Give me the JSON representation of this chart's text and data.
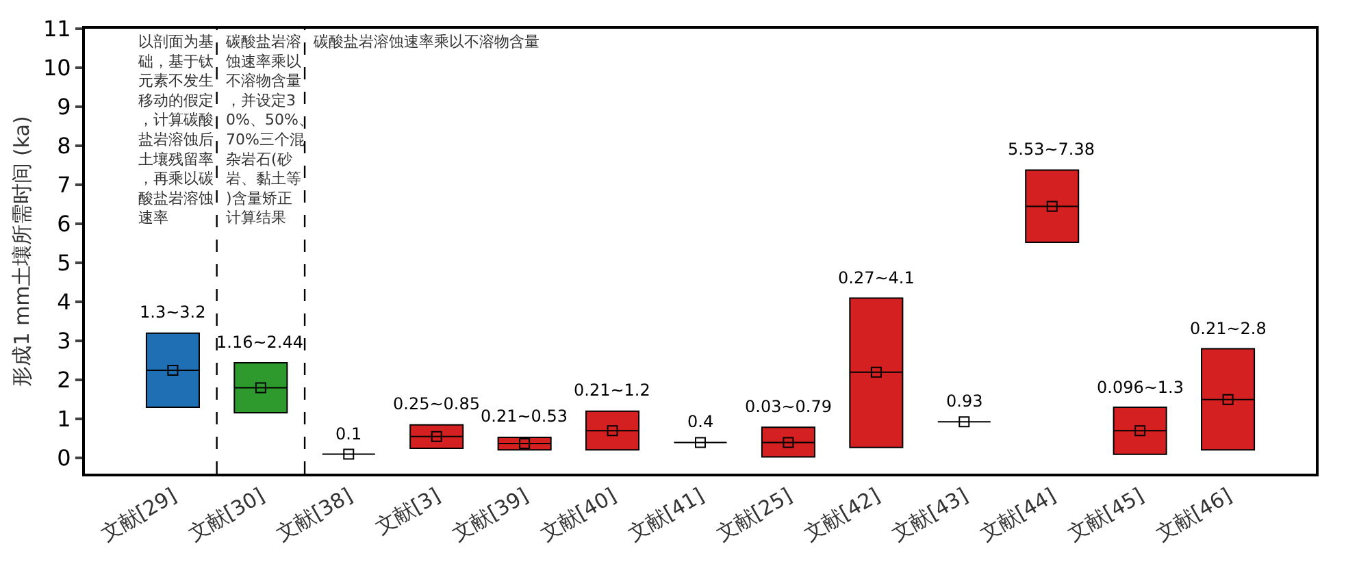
{
  "chart_data": {
    "type": "box",
    "ylabel": "形成1 mm土壤所需时间 (ka)",
    "categories": [
      "文献[29]",
      "文献[30]",
      "文献[38]",
      "文献[3]",
      "文献[39]",
      "文献[40]",
      "文献[41]",
      "文献[25]",
      "文献[42]",
      "文献[43]",
      "文献[44]",
      "文献[45]",
      "文献[46]"
    ],
    "boxes": [
      {
        "low": 1.3,
        "q1": 1.3,
        "median": 2.25,
        "q3": 3.2,
        "high": 3.2,
        "mean": 2.25
      },
      {
        "low": 1.16,
        "q1": 1.16,
        "median": 1.8,
        "q3": 2.44,
        "high": 2.44,
        "mean": 1.8
      },
      {
        "low": 0.1,
        "q1": 0.1,
        "median": 0.1,
        "q3": 0.1,
        "high": 0.1,
        "mean": 0.1
      },
      {
        "low": 0.25,
        "q1": 0.25,
        "median": 0.55,
        "q3": 0.85,
        "high": 0.85,
        "mean": 0.55
      },
      {
        "low": 0.21,
        "q1": 0.21,
        "median": 0.37,
        "q3": 0.53,
        "high": 0.53,
        "mean": 0.37
      },
      {
        "low": 0.21,
        "q1": 0.21,
        "median": 0.7,
        "q3": 1.2,
        "high": 1.2,
        "mean": 0.7
      },
      {
        "low": 0.4,
        "q1": 0.4,
        "median": 0.4,
        "q3": 0.4,
        "high": 0.4,
        "mean": 0.4
      },
      {
        "low": 0.03,
        "q1": 0.03,
        "median": 0.4,
        "q3": 0.79,
        "high": 0.79,
        "mean": 0.4
      },
      {
        "low": 0.27,
        "q1": 0.27,
        "median": 2.2,
        "q3": 4.1,
        "high": 4.1,
        "mean": 2.2
      },
      {
        "low": 0.93,
        "q1": 0.93,
        "median": 0.93,
        "q3": 0.93,
        "high": 0.93,
        "mean": 0.93
      },
      {
        "low": 5.53,
        "q1": 5.53,
        "median": 6.45,
        "q3": 7.38,
        "high": 7.38,
        "mean": 6.45
      },
      {
        "low": 0.096,
        "q1": 0.096,
        "median": 0.7,
        "q3": 1.3,
        "high": 1.3,
        "mean": 0.7
      },
      {
        "low": 0.21,
        "q1": 0.21,
        "median": 1.5,
        "q3": 2.8,
        "high": 2.8,
        "mean": 1.5
      }
    ],
    "colors": [
      "#1f6fb4",
      "#2e9a2e",
      "#000000",
      "#d42020",
      "#d42020",
      "#d42020",
      "#000000",
      "#d42020",
      "#d42020",
      "#000000",
      "#d42020",
      "#d42020",
      "#d42020"
    ],
    "ylim": [
      -0.4,
      11
    ],
    "yticks": [
      0,
      1,
      2,
      3,
      4,
      5,
      6,
      7,
      8,
      9,
      10,
      11
    ],
    "grid": false,
    "marker": "square",
    "annotations": [
      "以剖面为基础，基于钛元素不发生移动的假定，计算碳酸盐岩溶蚀后土壤残留率，再乘以碳酸盐岩溶蚀速率",
      "碳酸盐岩溶蚀速率乘以不溶物含量，并设定30%、50%、70%三个混杂岩石(砂岩、黏土等)含量矫正计算结果",
      "碳酸盐岩溶蚀速率乘以不溶物含量",
      {
        "text": "1.3~3.2",
        "x": "文献[29]",
        "y": 3.2
      },
      {
        "text": "1.16~2.44",
        "x": "文献[30]",
        "y": 2.44
      },
      {
        "text": "0.1",
        "x": "文献[38]",
        "y": 0.1
      },
      {
        "text": "0.25~0.85",
        "x": "文献[3]",
        "y": 0.85
      },
      {
        "text": "0.21~0.53",
        "x": "文献[39]",
        "y": 0.53
      },
      {
        "text": "0.21~1.2",
        "x": "文献[40]",
        "y": 1.2
      },
      {
        "text": "0.4",
        "x": "文献[41]",
        "y": 0.4
      },
      {
        "text": "0.03~0.79",
        "x": "文献[25]",
        "y": 0.79
      },
      {
        "text": "0.27~4.1",
        "x": "文献[42]",
        "y": 4.1
      },
      {
        "text": "0.93",
        "x": "文献[43]",
        "y": 0.93
      },
      {
        "text": "5.53~7.38",
        "x": "文献[44]",
        "y": 7.38
      },
      {
        "text": "0.096~1.3",
        "x": "文献[45]",
        "y": 1.3
      },
      {
        "text": "0.21~2.8",
        "x": "文献[46]",
        "y": 2.8
      }
    ]
  }
}
